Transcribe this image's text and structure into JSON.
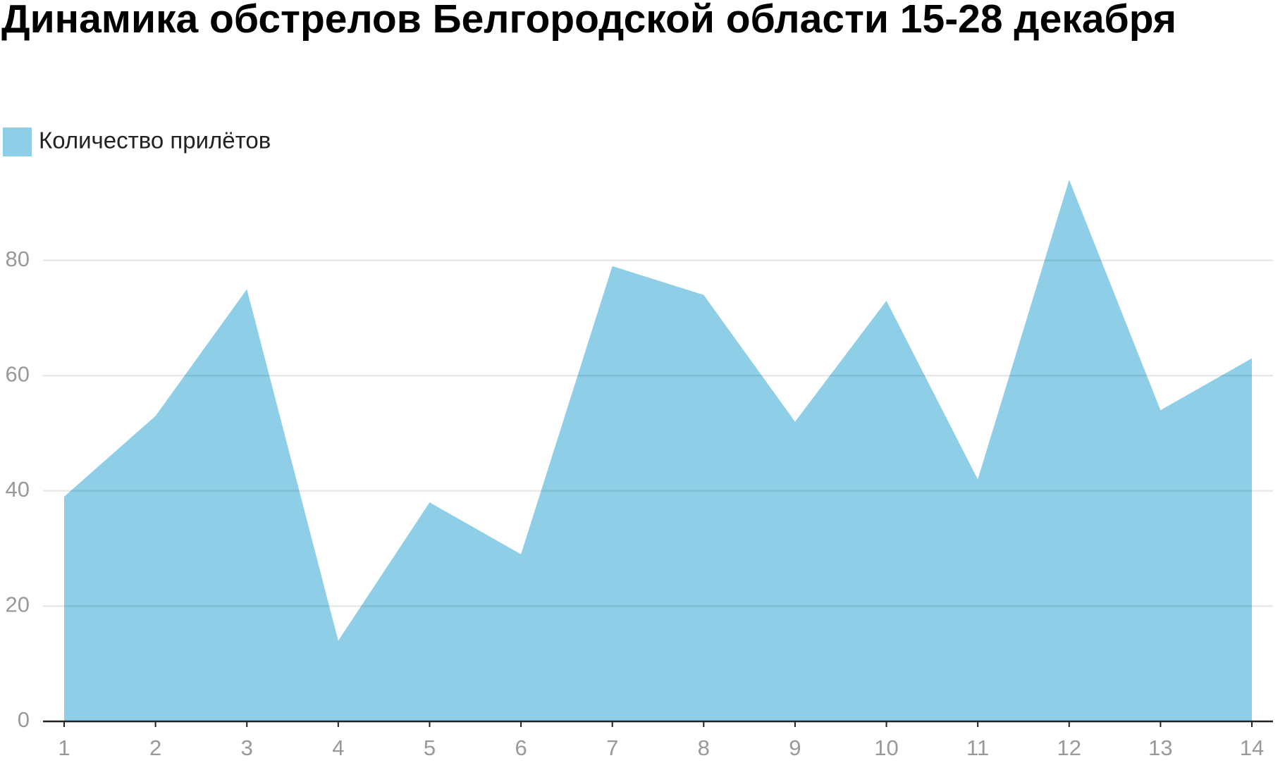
{
  "chart_data": {
    "type": "area",
    "title": "Динамика обстрелов Белгородской области 15-28 декабря",
    "x": [
      1,
      2,
      3,
      4,
      5,
      6,
      7,
      8,
      9,
      10,
      11,
      12,
      13,
      14
    ],
    "series": [
      {
        "name": "Количество прилётов",
        "color": "#8ecfe7",
        "values": [
          39,
          53,
          75,
          14,
          38,
          29,
          79,
          74,
          52,
          73,
          42,
          94,
          54,
          63
        ]
      }
    ],
    "xlim": [
      1,
      14
    ],
    "xticks": [
      1,
      2,
      3,
      4,
      5,
      6,
      7,
      8,
      9,
      10,
      11,
      12,
      13,
      14
    ],
    "ylim": [
      0,
      100
    ],
    "yticks": [
      0,
      20,
      40,
      60,
      80
    ],
    "grid": true
  }
}
